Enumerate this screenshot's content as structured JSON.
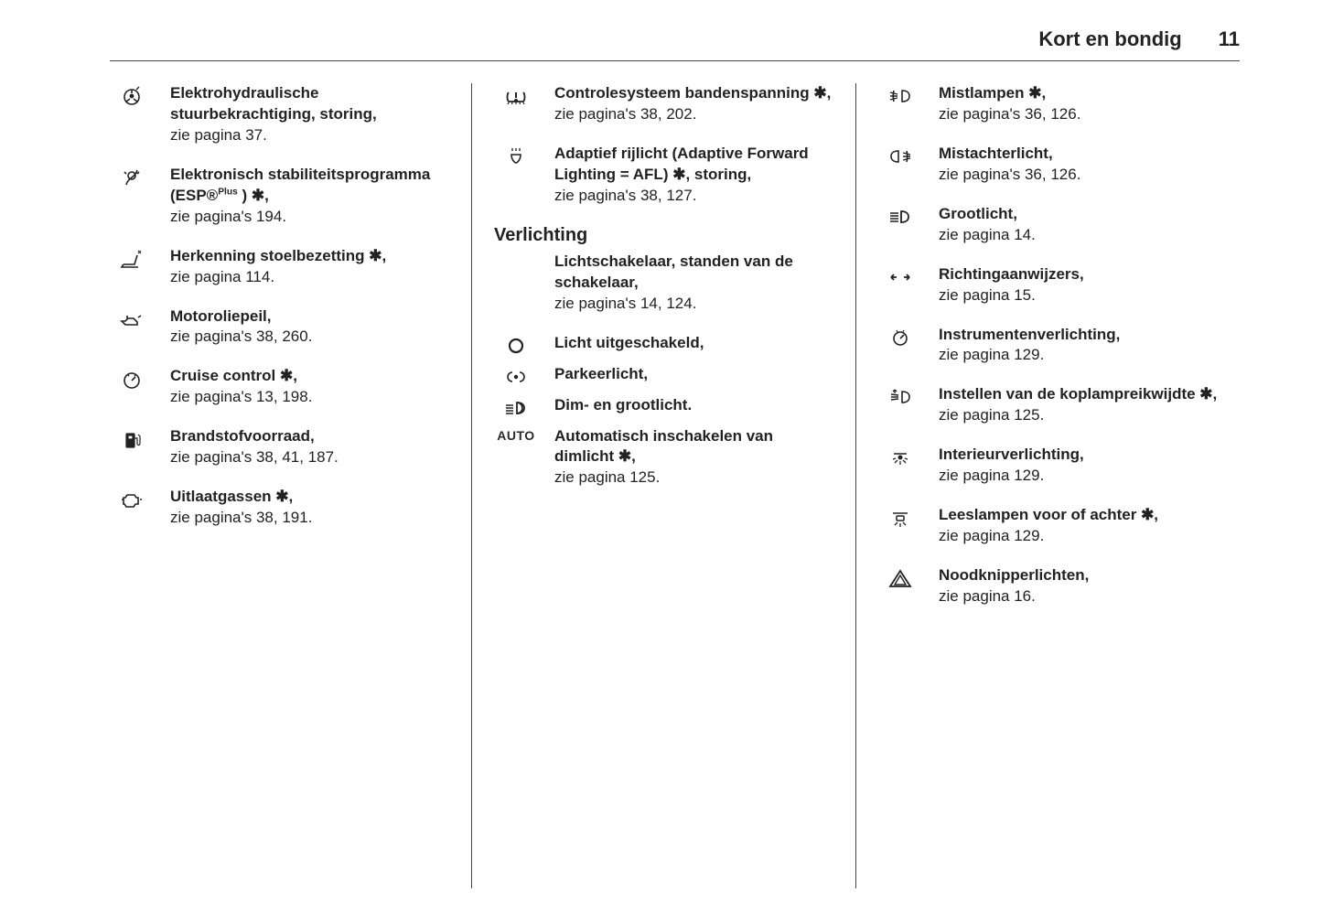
{
  "header": {
    "section": "Kort en bondig",
    "page": "11"
  },
  "col1": [
    {
      "icon": "steering",
      "title": "Elektrohydraulische stuurbekrachtiging, storing,",
      "ref": "zie pagina 37."
    },
    {
      "icon": "esp",
      "title": "Elektronisch stabiliteitsprogramma (ESP®",
      "titleSup": "Plus",
      "titleTail": ") ✱,",
      "ref": "zie pagina's 194."
    },
    {
      "icon": "seat",
      "title": "Herkenning stoelbezetting ✱,",
      "ref": "zie pagina 114."
    },
    {
      "icon": "oil",
      "title": "Motoroliepeil,",
      "ref": "zie pagina's 38, 260."
    },
    {
      "icon": "cruise",
      "title": "Cruise control ✱,",
      "ref": "zie pagina's 13, 198."
    },
    {
      "icon": "fuel",
      "title": "Brandstofvoorraad,",
      "ref": "zie pagina's 38, 41, 187."
    },
    {
      "icon": "exhaust",
      "title": "Uitlaatgassen ✱,",
      "ref": "zie pagina's 38, 191."
    }
  ],
  "col2a": [
    {
      "icon": "tpms",
      "title": "Controlesysteem bandenspanning ✱,",
      "ref": "zie pagina's 38, 202."
    },
    {
      "icon": "afl",
      "title": "Adaptief rijlicht (Adaptive Forward Lighting = AFL) ✱, storing,",
      "ref": "zie pagina's 38, 127."
    }
  ],
  "col2head": "Verlichting",
  "col2intro": {
    "title": "Lichtschakelaar, standen van de schakelaar,",
    "ref": "zie pagina's 14, 124."
  },
  "col2b": [
    {
      "icon": "off",
      "title": "Licht uitgeschakeld,"
    },
    {
      "icon": "park",
      "title": "Parkeerlicht,"
    },
    {
      "icon": "lowhigh",
      "title": "Dim- en grootlicht."
    },
    {
      "icon": "auto",
      "title": "Automatisch inschakelen van dimlicht ✱,",
      "ref": "zie pagina 125."
    }
  ],
  "col3": [
    {
      "icon": "fogfront",
      "title": "Mistlampen ✱,",
      "ref": "zie pagina's 36, 126."
    },
    {
      "icon": "fogrear",
      "title": "Mistachterlicht,",
      "ref": "zie pagina's 36, 126."
    },
    {
      "icon": "highbeam",
      "title": "Grootlicht,",
      "ref": "zie pagina 14."
    },
    {
      "icon": "turn",
      "title": "Richtingaanwijzers,",
      "ref": "zie pagina 15."
    },
    {
      "icon": "instrlight",
      "title": "Instrumentenverlichting,",
      "ref": "zie pagina 129."
    },
    {
      "icon": "headrange",
      "title": "Instellen van de koplampreikwijdte ✱,",
      "ref": "zie pagina 125."
    },
    {
      "icon": "interior",
      "title": "Interieurverlichting,",
      "ref": "zie pagina 129."
    },
    {
      "icon": "reading",
      "title": "Leeslampen voor of achter ✱,",
      "ref": "zie pagina 129."
    },
    {
      "icon": "hazard",
      "title": "Noodknipperlichten,",
      "ref": "zie pagina 16."
    }
  ],
  "icons": {
    "steering": "⊘",
    "esp": "⛯",
    "seat": "⩍",
    "oil": "⛽",
    "cruise": "⏲",
    "fuel": "⛽",
    "exhaust": "⚙",
    "tpms": "(!)",
    "afl": "☉",
    "off": "O",
    "park": "⊃o⊂",
    "lowhigh": "≣D",
    "auto": "AUTO",
    "fogfront": "≢D",
    "fogrear": "O≢",
    "highbeam": "≡D",
    "turn": "⇔",
    "instrlight": "⊘",
    "headrange": "≣D",
    "interior": "☼",
    "reading": "☼",
    "hazard": "△"
  }
}
